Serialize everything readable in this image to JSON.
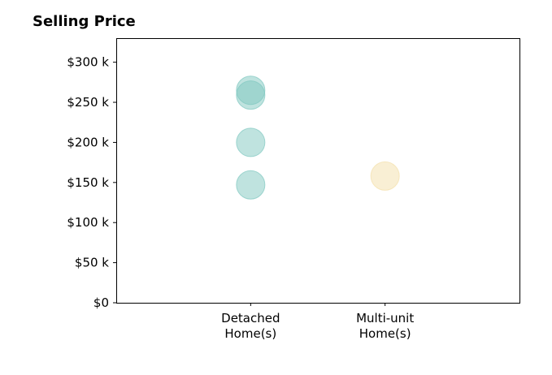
{
  "chart_data": {
    "type": "scatter",
    "title": "Selling Price",
    "xlabel": "",
    "ylabel": "",
    "categories": [
      [
        "Detached",
        "Home(s)"
      ],
      [
        "Multi-unit",
        "Home(s)"
      ]
    ],
    "xlim": [
      -1,
      2
    ],
    "ylim": [
      0,
      330000
    ],
    "yticks": [
      0,
      50000,
      100000,
      150000,
      200000,
      250000,
      300000
    ],
    "ytick_labels": [
      "$0",
      "$50 k",
      "$100 k",
      "$150 k",
      "$200 k",
      "$250 k",
      "$300 k"
    ],
    "grid": false,
    "series": [
      {
        "color": "#7fc8c0",
        "points": [
          {
            "x": 0,
            "y": 265000
          },
          {
            "x": 0,
            "y": 259000
          },
          {
            "x": 0,
            "y": 200000
          },
          {
            "x": 0,
            "y": 147000
          }
        ]
      },
      {
        "color": "#f3dfaa",
        "points": [
          {
            "x": 1,
            "y": 158000
          }
        ]
      }
    ]
  }
}
